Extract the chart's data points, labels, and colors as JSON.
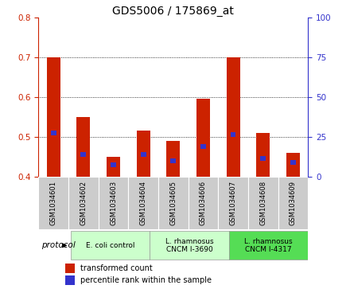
{
  "title": "GDS5006 / 175869_at",
  "samples": [
    "GSM1034601",
    "GSM1034602",
    "GSM1034603",
    "GSM1034604",
    "GSM1034605",
    "GSM1034606",
    "GSM1034607",
    "GSM1034608",
    "GSM1034609"
  ],
  "transformed_count": [
    0.7,
    0.55,
    0.45,
    0.515,
    0.49,
    0.595,
    0.7,
    0.51,
    0.46
  ],
  "percentile_rank": [
    0.51,
    0.455,
    0.43,
    0.455,
    0.44,
    0.475,
    0.505,
    0.445,
    0.435
  ],
  "bar_bottom": 0.4,
  "ylim_left": [
    0.4,
    0.8
  ],
  "ylim_right": [
    0,
    100
  ],
  "yticks_left": [
    0.4,
    0.5,
    0.6,
    0.7,
    0.8
  ],
  "yticks_right": [
    0,
    25,
    50,
    75,
    100
  ],
  "bar_color_red": "#cc2200",
  "bar_color_blue": "#3333cc",
  "grid_color": "#000000",
  "legend_red_label": "transformed count",
  "legend_blue_label": "percentile rank within the sample",
  "protocol_label": "protocol",
  "color_red": "#cc2200",
  "color_blue": "#3333cc",
  "title_fontsize": 10,
  "tick_fontsize": 7.5,
  "group_labels": [
    "E. coli control",
    "L. rhamnosus\nCNCM I-3690",
    "L. rhamnosus\nCNCM I-4317"
  ],
  "group_starts": [
    0,
    3,
    6
  ],
  "group_ends": [
    3,
    6,
    9
  ],
  "group_face_colors": [
    "#ccffcc",
    "#ccffcc",
    "#55dd55"
  ],
  "sample_bg_color": "#cccccc",
  "bar_width": 0.45,
  "blue_bar_width": 0.18,
  "blue_bar_height": 0.012
}
